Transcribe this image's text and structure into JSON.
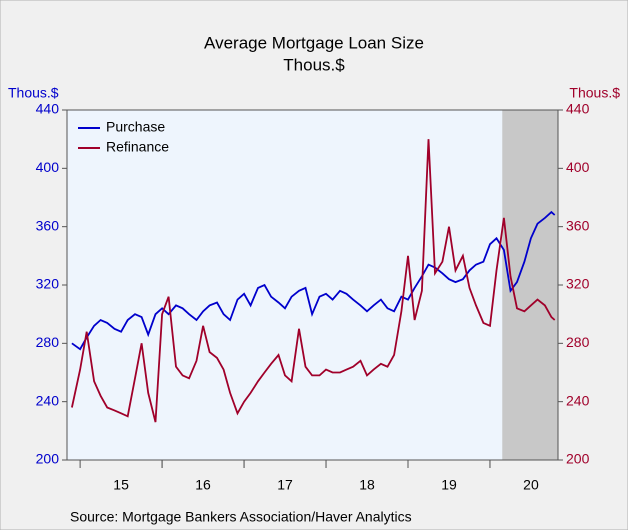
{
  "chart_data": {
    "type": "line",
    "title": "Average Mortgage Loan Size",
    "subtitle": "Thous.$",
    "ylabel": "Thous.$",
    "y2label": "Thous.$",
    "source": "Source:  Mortgage Bankers Association/Haver Analytics",
    "x": [
      14.9,
      15.0,
      15.08,
      15.17,
      15.25,
      15.33,
      15.42,
      15.5,
      15.58,
      15.67,
      15.75,
      15.83,
      15.92,
      16.0,
      16.08,
      16.17,
      16.25,
      16.33,
      16.42,
      16.5,
      16.58,
      16.67,
      16.75,
      16.83,
      16.92,
      17.0,
      17.08,
      17.17,
      17.25,
      17.33,
      17.42,
      17.5,
      17.58,
      17.67,
      17.75,
      17.83,
      17.92,
      18.0,
      18.08,
      18.17,
      18.25,
      18.33,
      18.42,
      18.5,
      18.58,
      18.67,
      18.75,
      18.83,
      18.92,
      19.0,
      19.08,
      19.17,
      19.25,
      19.33,
      19.42,
      19.5,
      19.58,
      19.67,
      19.75,
      19.83,
      19.92,
      20.0,
      20.08,
      20.17,
      20.25,
      20.33,
      20.42,
      20.5,
      20.58,
      20.67,
      20.75,
      20.79
    ],
    "series": [
      {
        "name": "Purchase",
        "color": "#0000cc",
        "axis": "y",
        "values": [
          280,
          276,
          284,
          292,
          296,
          294,
          290,
          288,
          296,
          300,
          298,
          286,
          300,
          304,
          300,
          306,
          304,
          300,
          296,
          302,
          306,
          308,
          300,
          296,
          310,
          314,
          306,
          318,
          320,
          312,
          308,
          304,
          312,
          316,
          318,
          300,
          312,
          314,
          310,
          316,
          314,
          310,
          306,
          302,
          306,
          310,
          304,
          302,
          312,
          310,
          318,
          326,
          334,
          332,
          328,
          324,
          322,
          324,
          330,
          334,
          336,
          348,
          352,
          344,
          316,
          322,
          336,
          352,
          362,
          366,
          370,
          368
        ]
      },
      {
        "name": "Refinance",
        "color": "#a0002a",
        "axis": "y2",
        "values": [
          236,
          262,
          288,
          254,
          244,
          236,
          234,
          232,
          230,
          256,
          280,
          246,
          226,
          300,
          312,
          264,
          258,
          256,
          268,
          292,
          274,
          270,
          262,
          246,
          232,
          240,
          246,
          254,
          260,
          266,
          272,
          258,
          254,
          290,
          264,
          258,
          258,
          262,
          260,
          260,
          262,
          264,
          268,
          258,
          262,
          266,
          264,
          272,
          302,
          340,
          296,
          316,
          420,
          328,
          336,
          360,
          330,
          340,
          318,
          306,
          294,
          292,
          330,
          366,
          326,
          304,
          302,
          306,
          310,
          306,
          298,
          296
        ]
      }
    ],
    "shaded_range": [
      20.15,
      20.83
    ],
    "xlim": [
      14.84,
      20.83
    ],
    "xticks": [
      {
        "value": 15.5,
        "label": "15"
      },
      {
        "value": 16.5,
        "label": "16"
      },
      {
        "value": 17.5,
        "label": "17"
      },
      {
        "value": 18.5,
        "label": "18"
      },
      {
        "value": 19.5,
        "label": "19"
      },
      {
        "value": 20.5,
        "label": "20"
      }
    ],
    "ylim": [
      200,
      440
    ],
    "yticks": [
      200,
      240,
      280,
      320,
      360,
      400,
      440
    ],
    "y2lim": [
      200,
      440
    ],
    "y2ticks": [
      200,
      240,
      280,
      320,
      360,
      400,
      440
    ],
    "legend": "upper left"
  }
}
